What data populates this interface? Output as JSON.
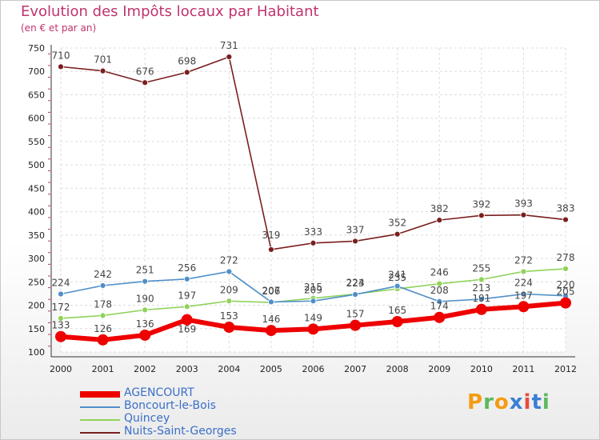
{
  "title": "Evolution des Impôts locaux par Habitant",
  "subtitle": "(en € et par an)",
  "logo": "Proxiti",
  "logo_colors": [
    "#f39c12",
    "#5cb85c",
    "#f39c12",
    "#3a7fd5",
    "#e74c3c",
    "#3a7fd5",
    "#5cb85c"
  ],
  "chart_data": {
    "type": "line",
    "x": [
      "2000",
      "2001",
      "2002",
      "2003",
      "2004",
      "2005",
      "2006",
      "2007",
      "2008",
      "2009",
      "2010",
      "2011",
      "2012"
    ],
    "ylim": [
      100,
      750
    ],
    "yticks": [
      100,
      150,
      200,
      250,
      300,
      350,
      400,
      450,
      500,
      550,
      600,
      650,
      700,
      750
    ],
    "grid": true,
    "legend_position": "bottom-left",
    "series": [
      {
        "name": "AGENCOURT",
        "color": "#ee0000",
        "values": [
          133,
          126,
          136,
          169,
          153,
          146,
          149,
          157,
          165,
          174,
          191,
          197,
          205
        ]
      },
      {
        "name": "Boncourt-le-Bois",
        "color": "#4f8fc8",
        "values": [
          224,
          242,
          251,
          256,
          272,
          207,
          209,
          223,
          241,
          208,
          213,
          224,
          220
        ]
      },
      {
        "name": "Quincey",
        "color": "#8fd35a",
        "values": [
          172,
          178,
          190,
          197,
          209,
          206,
          215,
          224,
          235,
          246,
          255,
          272,
          278
        ]
      },
      {
        "name": "Nuits-Saint-Georges",
        "color": "#7a1f1f",
        "values": [
          710,
          701,
          676,
          698,
          731,
          319,
          333,
          337,
          352,
          382,
          392,
          393,
          383
        ]
      }
    ]
  }
}
